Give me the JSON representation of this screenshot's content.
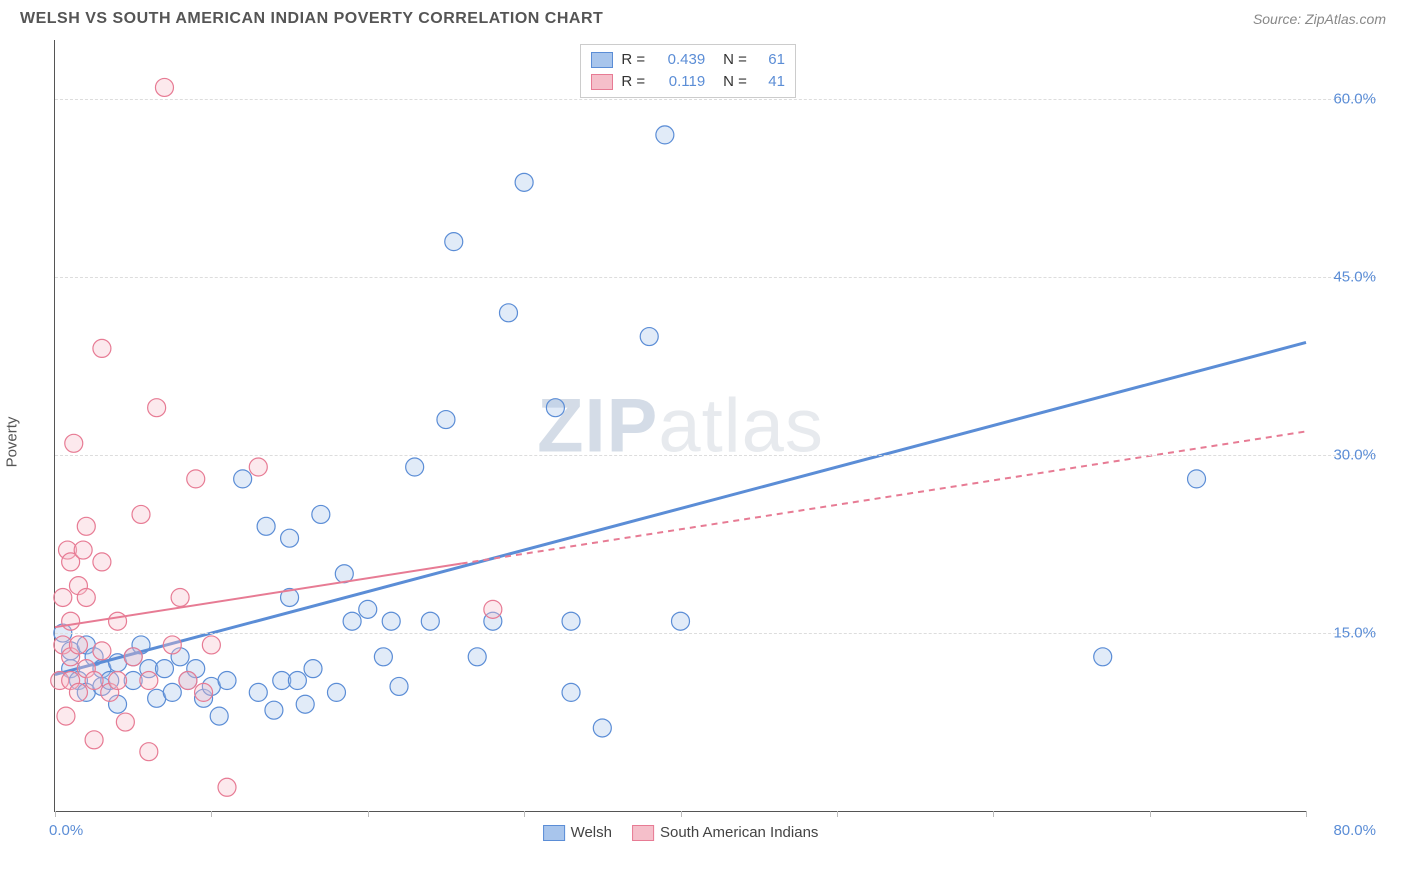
{
  "header": {
    "title": "WELSH VS SOUTH AMERICAN INDIAN POVERTY CORRELATION CHART",
    "source_prefix": "Source: ",
    "source_name": "ZipAtlas.com"
  },
  "chart": {
    "type": "scatter",
    "background_color": "#ffffff",
    "grid_color": "#dddddd",
    "axis_color": "#555555",
    "tick_label_color": "#5b8dd6",
    "tick_fontsize": 15,
    "y_axis_title": "Poverty",
    "xlim": [
      0,
      80
    ],
    "ylim": [
      0,
      65
    ],
    "x_ticks": [
      0,
      10,
      20,
      30,
      40,
      50,
      60,
      70,
      80
    ],
    "x_origin_label": "0.0%",
    "x_max_label": "80.0%",
    "y_gridlines": [
      {
        "value": 15,
        "label": "15.0%"
      },
      {
        "value": 30,
        "label": "30.0%"
      },
      {
        "value": 45,
        "label": "45.0%"
      },
      {
        "value": 60,
        "label": "60.0%"
      }
    ],
    "watermark": {
      "zip": "ZIP",
      "atlas": "atlas"
    },
    "marker_radius": 9,
    "marker_stroke_width": 1.2,
    "marker_fill_opacity": 0.35,
    "series": [
      {
        "key": "welsh",
        "label": "Welsh",
        "color_fill": "#a8c5ec",
        "color_stroke": "#5b8dd6",
        "R": "0.439",
        "N": "61",
        "trend": {
          "x1": 0,
          "y1": 11.5,
          "x2": 80,
          "y2": 39.5,
          "width": 3,
          "dash": "",
          "seg2_dash": ""
        },
        "points": [
          [
            0.5,
            15
          ],
          [
            1,
            12
          ],
          [
            1,
            13.5
          ],
          [
            1.5,
            11
          ],
          [
            2,
            14
          ],
          [
            2,
            10
          ],
          [
            2.5,
            13
          ],
          [
            3,
            12
          ],
          [
            3,
            10.5
          ],
          [
            3.5,
            11
          ],
          [
            4,
            12.5
          ],
          [
            4,
            9
          ],
          [
            5,
            13
          ],
          [
            5,
            11
          ],
          [
            5.5,
            14
          ],
          [
            6,
            12
          ],
          [
            6.5,
            9.5
          ],
          [
            7,
            12
          ],
          [
            7.5,
            10
          ],
          [
            8,
            13
          ],
          [
            8.5,
            11
          ],
          [
            9,
            12
          ],
          [
            9.5,
            9.5
          ],
          [
            10,
            10.5
          ],
          [
            10.5,
            8
          ],
          [
            11,
            11
          ],
          [
            12,
            28
          ],
          [
            13,
            10
          ],
          [
            13.5,
            24
          ],
          [
            14,
            8.5
          ],
          [
            14.5,
            11
          ],
          [
            15,
            23
          ],
          [
            15,
            18
          ],
          [
            15.5,
            11
          ],
          [
            16,
            9
          ],
          [
            16.5,
            12
          ],
          [
            17,
            25
          ],
          [
            18,
            10
          ],
          [
            18.5,
            20
          ],
          [
            19,
            16
          ],
          [
            20,
            17
          ],
          [
            21,
            13
          ],
          [
            21.5,
            16
          ],
          [
            22,
            10.5
          ],
          [
            23,
            29
          ],
          [
            24,
            16
          ],
          [
            25,
            33
          ],
          [
            25.5,
            48
          ],
          [
            27,
            13
          ],
          [
            28,
            16
          ],
          [
            29,
            42
          ],
          [
            30,
            53
          ],
          [
            32,
            34
          ],
          [
            33,
            10
          ],
          [
            33,
            16
          ],
          [
            35,
            7
          ],
          [
            38,
            40
          ],
          [
            39,
            57
          ],
          [
            40,
            16
          ],
          [
            67,
            13
          ],
          [
            73,
            28
          ]
        ]
      },
      {
        "key": "sai",
        "label": "South American Indians",
        "color_fill": "#f5bfca",
        "color_stroke": "#e77b94",
        "R": "0.119",
        "N": "41",
        "trend": {
          "x1": 0,
          "y1": 15.5,
          "x2": 80,
          "y2": 32,
          "width": 2,
          "dash": "",
          "seg2_dash": "6 5",
          "split_x": 26
        },
        "points": [
          [
            0.3,
            11
          ],
          [
            0.5,
            14
          ],
          [
            0.5,
            18
          ],
          [
            0.7,
            8
          ],
          [
            0.8,
            22
          ],
          [
            1,
            16
          ],
          [
            1,
            13
          ],
          [
            1,
            11
          ],
          [
            1,
            21
          ],
          [
            1.2,
            31
          ],
          [
            1.5,
            19
          ],
          [
            1.5,
            14
          ],
          [
            1.5,
            10
          ],
          [
            1.8,
            22
          ],
          [
            2,
            12
          ],
          [
            2,
            18
          ],
          [
            2,
            24
          ],
          [
            2.5,
            11
          ],
          [
            2.5,
            6
          ],
          [
            3,
            13.5
          ],
          [
            3,
            21
          ],
          [
            3,
            39
          ],
          [
            3.5,
            10
          ],
          [
            4,
            16
          ],
          [
            4,
            11
          ],
          [
            4.5,
            7.5
          ],
          [
            5,
            13
          ],
          [
            5.5,
            25
          ],
          [
            6,
            11
          ],
          [
            6,
            5
          ],
          [
            6.5,
            34
          ],
          [
            7,
            61
          ],
          [
            7.5,
            14
          ],
          [
            8,
            18
          ],
          [
            8.5,
            11
          ],
          [
            9,
            28
          ],
          [
            9.5,
            10
          ],
          [
            10,
            14
          ],
          [
            11,
            2
          ],
          [
            13,
            29
          ],
          [
            28,
            17
          ]
        ]
      }
    ],
    "legend_top": {
      "R_label": "R =",
      "N_label": "N ="
    },
    "legend_bottom": [
      {
        "series": "welsh"
      },
      {
        "series": "sai"
      }
    ]
  }
}
